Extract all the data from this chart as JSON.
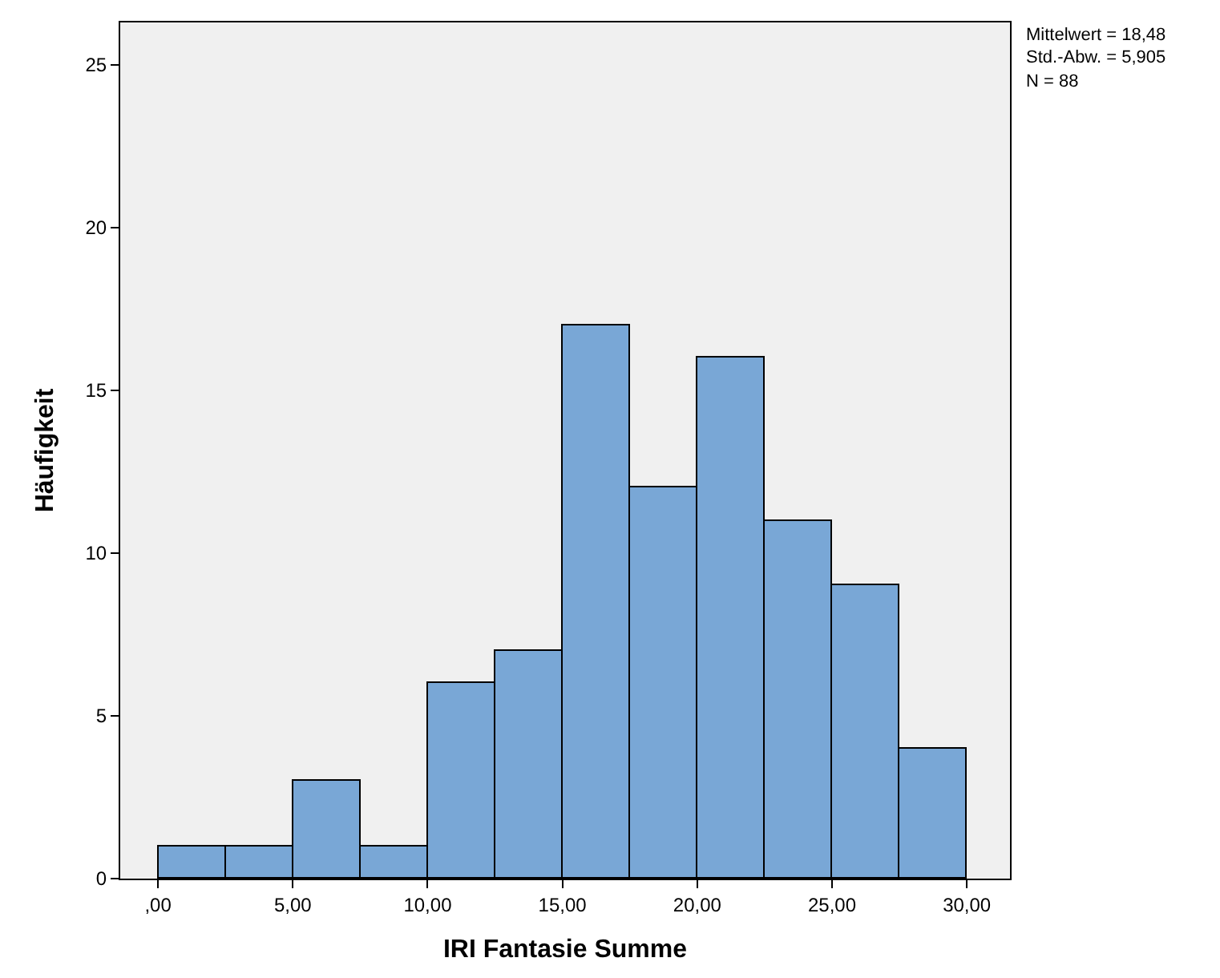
{
  "chart_data": {
    "type": "histogram",
    "xlabel": "IRI Fantasie Summe",
    "ylabel": "Häufigkeit",
    "bins": [
      0,
      2.5,
      5,
      7.5,
      10,
      12.5,
      15,
      17.5,
      20,
      22.5,
      25,
      27.5,
      30
    ],
    "values": [
      1,
      1,
      3,
      1,
      6,
      7,
      17,
      12,
      16,
      11,
      9,
      4
    ],
    "color": "#79a7d6",
    "xlim": [
      -1.4,
      31.6
    ],
    "xticks": [
      {
        "value": 0,
        "label": ",00"
      },
      {
        "value": 5,
        "label": "5,00"
      },
      {
        "value": 10,
        "label": "10,00"
      },
      {
        "value": 15,
        "label": "15,00"
      },
      {
        "value": 20,
        "label": "20,00"
      },
      {
        "value": 25,
        "label": "25,00"
      },
      {
        "value": 30,
        "label": "30,00"
      }
    ],
    "ylim": [
      0,
      26.3
    ],
    "yticks": [
      0,
      5,
      10,
      15,
      20,
      25
    ],
    "grid": false,
    "annotations": [
      "Mittelwert = 18,48",
      "Std.-Abw. = 5,905",
      "N = 88"
    ]
  }
}
